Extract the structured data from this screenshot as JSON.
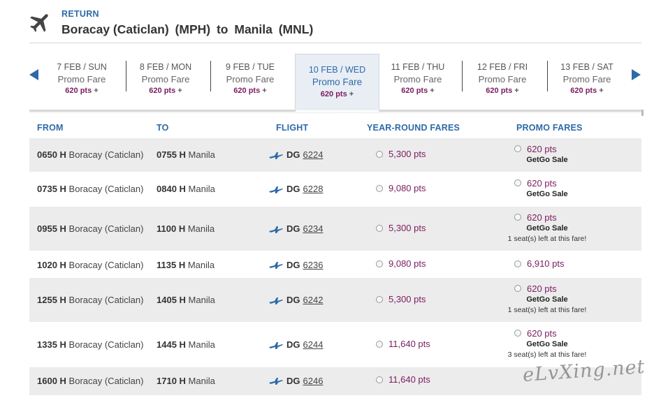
{
  "header": {
    "label": "RETURN",
    "origin": "Boracay (Caticlan)",
    "origin_code": "(MPH)",
    "to": "to",
    "destination": "Manila",
    "destination_code": "(MNL)"
  },
  "dates": [
    {
      "date": "7 FEB / SUN",
      "fare": "Promo Fare",
      "pts": "620 pts",
      "plus": "+"
    },
    {
      "date": "8 FEB / MON",
      "fare": "Promo Fare",
      "pts": "620 pts",
      "plus": "+"
    },
    {
      "date": "9 FEB / TUE",
      "fare": "Promo Fare",
      "pts": "620 pts",
      "plus": "+"
    },
    {
      "date": "10 FEB / WED",
      "fare": "Promo Fare",
      "pts": "620 pts",
      "plus": "+"
    },
    {
      "date": "11 FEB / THU",
      "fare": "Promo Fare",
      "pts": "620 pts",
      "plus": "+"
    },
    {
      "date": "12 FEB / FRI",
      "fare": "Promo Fare",
      "pts": "620 pts",
      "plus": "+"
    },
    {
      "date": "13 FEB / SAT",
      "fare": "Promo Fare",
      "pts": "620 pts",
      "plus": "+"
    }
  ],
  "columns": {
    "from": "FROM",
    "to": "TO",
    "flight": "FLIGHT",
    "year_round": "YEAR-ROUND FARES",
    "promo": "PROMO FARES"
  },
  "rows": [
    {
      "dep_time": "0650 H",
      "dep_city": "Boracay (Caticlan)",
      "arr_time": "0755 H",
      "arr_city": "Manila",
      "airline": "DG",
      "flight_no": "6224",
      "year_pts": "5,300 pts",
      "promo_pts": "620 pts",
      "promo_sale": "GetGo Sale",
      "promo_seats": ""
    },
    {
      "dep_time": "0735 H",
      "dep_city": "Boracay (Caticlan)",
      "arr_time": "0840 H",
      "arr_city": "Manila",
      "airline": "DG",
      "flight_no": "6228",
      "year_pts": "9,080 pts",
      "promo_pts": "620 pts",
      "promo_sale": "GetGo Sale",
      "promo_seats": ""
    },
    {
      "dep_time": "0955 H",
      "dep_city": "Boracay (Caticlan)",
      "arr_time": "1100 H",
      "arr_city": "Manila",
      "airline": "DG",
      "flight_no": "6234",
      "year_pts": "5,300 pts",
      "promo_pts": "620 pts",
      "promo_sale": "GetGo Sale",
      "promo_seats": "1 seat(s) left at this fare!"
    },
    {
      "dep_time": "1020 H",
      "dep_city": "Boracay (Caticlan)",
      "arr_time": "1135 H",
      "arr_city": "Manila",
      "airline": "DG",
      "flight_no": "6236",
      "year_pts": "9,080 pts",
      "promo_pts": "6,910 pts",
      "promo_sale": "",
      "promo_seats": ""
    },
    {
      "dep_time": "1255 H",
      "dep_city": "Boracay (Caticlan)",
      "arr_time": "1405 H",
      "arr_city": "Manila",
      "airline": "DG",
      "flight_no": "6242",
      "year_pts": "5,300 pts",
      "promo_pts": "620 pts",
      "promo_sale": "GetGo Sale",
      "promo_seats": "1 seat(s) left at this fare!"
    },
    {
      "dep_time": "1335 H",
      "dep_city": "Boracay (Caticlan)",
      "arr_time": "1445 H",
      "arr_city": "Manila",
      "airline": "DG",
      "flight_no": "6244",
      "year_pts": "11,640 pts",
      "promo_pts": "620 pts",
      "promo_sale": "GetGo Sale",
      "promo_seats": "3 seat(s) left at this fare!"
    },
    {
      "dep_time": "1600 H",
      "dep_city": "Boracay (Caticlan)",
      "arr_time": "1710 H",
      "arr_city": "Manila",
      "airline": "DG",
      "flight_no": "6246",
      "year_pts": "11,640 pts",
      "promo_pts": "",
      "promo_sale": "",
      "promo_seats": ""
    }
  ],
  "watermark": "eLvXing.net",
  "icons": {
    "header": "airplane-icon",
    "row": "plane-icon",
    "prev": "prev-arrow-icon",
    "next": "next-arrow-icon"
  },
  "colors": {
    "accent": "#2e6aa8",
    "points": "#7a1c5f",
    "row_shade": "#ececec"
  }
}
